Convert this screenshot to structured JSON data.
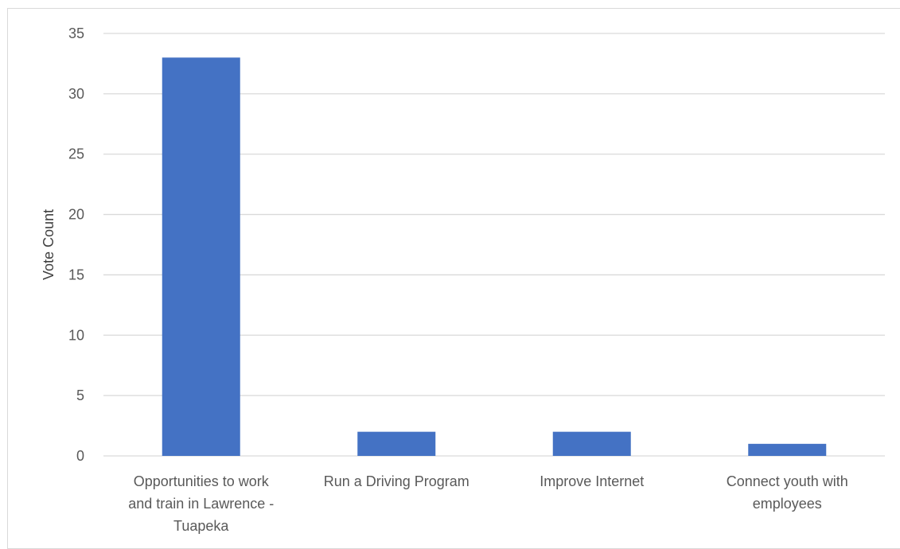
{
  "chart_data": {
    "type": "bar",
    "title": "",
    "xlabel": "",
    "ylabel": "Vote Count",
    "ylim": [
      0,
      35
    ],
    "yticks": [
      0,
      5,
      10,
      15,
      20,
      25,
      30,
      35
    ],
    "grid": true,
    "legend": "none",
    "categories": [
      [
        "Opportunities to work",
        "and train in Lawrence -",
        "Tuapeka"
      ],
      [
        "Run  a Driving Program"
      ],
      [
        "Improve Internet"
      ],
      [
        "Connect youth with",
        "employees"
      ]
    ],
    "values": [
      33,
      2,
      2,
      1
    ],
    "bar_color": "#4472c4",
    "gridline_color": "#d9d9d9"
  }
}
